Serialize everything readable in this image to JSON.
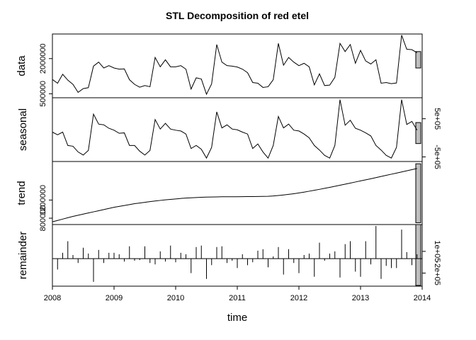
{
  "chart_data": {
    "type": "line",
    "title": "STL Decomposition of red etel",
    "xlabel": "time",
    "xlim": [
      2008,
      2014
    ],
    "x_ticks": [
      "2008",
      "2009",
      "2010",
      "2011",
      "2012",
      "2013",
      "2014"
    ],
    "start": 2008,
    "frequency": 12,
    "panels": [
      {
        "name": "data",
        "ylim": [
          330000,
          3050000
        ],
        "left_ticks": [
          {
            "value": 500000,
            "label": "500000"
          },
          {
            "value": 2000000,
            "label": "2000000"
          }
        ],
        "right_ticks": [],
        "bar_range": [
          1600000,
          2300000
        ],
        "values": [
          1110000,
          950000,
          1330000,
          1080000,
          900000,
          560000,
          720000,
          760000,
          1680000,
          1850000,
          1600000,
          1700000,
          1600000,
          1550000,
          1560000,
          1100000,
          900000,
          780000,
          850000,
          800000,
          2050000,
          1650000,
          1950000,
          1650000,
          1650000,
          1700000,
          1550000,
          700000,
          1180000,
          1130000,
          480000,
          920000,
          2600000,
          1850000,
          1700000,
          1680000,
          1640000,
          1550000,
          1400000,
          980000,
          950000,
          770000,
          800000,
          1100000,
          2650000,
          1720000,
          2050000,
          1850000,
          1700000,
          1800000,
          1650000,
          880000,
          1350000,
          850000,
          870000,
          1200000,
          2650000,
          2300000,
          2600000,
          1800000,
          2350000,
          1900000,
          1770000,
          1950000,
          950000,
          980000,
          930000,
          960000,
          3000000,
          2400000,
          2380000,
          2250000
        ]
      },
      {
        "name": "seasonal",
        "ylim": [
          -620000,
          1050000
        ],
        "left_ticks": [],
        "right_ticks": [
          {
            "value": 500000,
            "label": "5e+05"
          },
          {
            "value": -500000,
            "label": "-5e+05"
          }
        ],
        "bar_range": [
          -150000,
          400000
        ],
        "values": [
          150000,
          80000,
          150000,
          -200000,
          -220000,
          -370000,
          -450000,
          -330000,
          620000,
          360000,
          340000,
          250000,
          200000,
          120000,
          130000,
          -200000,
          -200000,
          -350000,
          -450000,
          -330000,
          480000,
          230000,
          380000,
          230000,
          200000,
          180000,
          100000,
          -280000,
          -200000,
          -300000,
          -530000,
          -250000,
          680000,
          260000,
          340000,
          230000,
          210000,
          150000,
          100000,
          -280000,
          -160000,
          -370000,
          -530000,
          -200000,
          560000,
          260000,
          360000,
          200000,
          180000,
          100000,
          0,
          -200000,
          -320000,
          -460000,
          -530000,
          -200000,
          1000000,
          330000,
          460000,
          250000,
          200000,
          130000,
          50000,
          -200000,
          -320000,
          -460000,
          -530000,
          -250000,
          1000000,
          350000,
          430000,
          200000
        ]
      },
      {
        "name": "trend",
        "ylim": [
          660000,
          2050000
        ],
        "left_ticks": [
          {
            "value": 800000,
            "label": "800000"
          },
          {
            "value": 1200000,
            "label": "1200000"
          }
        ],
        "right_ticks": [],
        "bar_range": [
          700000,
          2000000
        ],
        "values": [
          720000,
          750000,
          780000,
          810000,
          840000,
          865000,
          890000,
          915000,
          940000,
          965000,
          990000,
          1015000,
          1040000,
          1060000,
          1080000,
          1100000,
          1120000,
          1135000,
          1150000,
          1165000,
          1180000,
          1192000,
          1204000,
          1215000,
          1225000,
          1235000,
          1243000,
          1250000,
          1256000,
          1261000,
          1265000,
          1268000,
          1270000,
          1272000,
          1273000,
          1274000,
          1274000,
          1275000,
          1276000,
          1277000,
          1278000,
          1280000,
          1283000,
          1290000,
          1300000,
          1312000,
          1325000,
          1340000,
          1357000,
          1375000,
          1395000,
          1415000,
          1436000,
          1458000,
          1480000,
          1503000,
          1526000,
          1550000,
          1574000,
          1598000,
          1622000,
          1646000,
          1670000,
          1695000,
          1720000,
          1745000,
          1770000,
          1795000,
          1820000,
          1845000,
          1870000,
          1895000
        ]
      },
      {
        "name": "remainder",
        "ylim": [
          -380000,
          470000
        ],
        "left_ticks": [],
        "right_ticks": [
          {
            "value": 100000,
            "label": "1e+05"
          },
          {
            "value": -200000,
            "label": "-2e+05"
          }
        ],
        "bar_range": [
          -370000,
          470000
        ],
        "values": [
          -100000,
          -150000,
          80000,
          240000,
          50000,
          -60000,
          150000,
          70000,
          -320000,
          120000,
          -60000,
          80000,
          80000,
          60000,
          -40000,
          170000,
          -30000,
          -20000,
          170000,
          -60000,
          -80000,
          100000,
          -40000,
          180000,
          -50000,
          80000,
          60000,
          -200000,
          160000,
          180000,
          -280000,
          -90000,
          160000,
          170000,
          -60000,
          -30000,
          -130000,
          60000,
          -90000,
          -50000,
          110000,
          130000,
          -120000,
          30000,
          160000,
          -220000,
          130000,
          -60000,
          -200000,
          50000,
          70000,
          -250000,
          220000,
          -30000,
          70000,
          100000,
          -260000,
          200000,
          240000,
          -180000,
          -250000,
          240000,
          -80000,
          450000,
          -280000,
          -100000,
          -130000,
          -130000,
          400000,
          90000,
          -90000,
          60000
        ]
      }
    ]
  }
}
